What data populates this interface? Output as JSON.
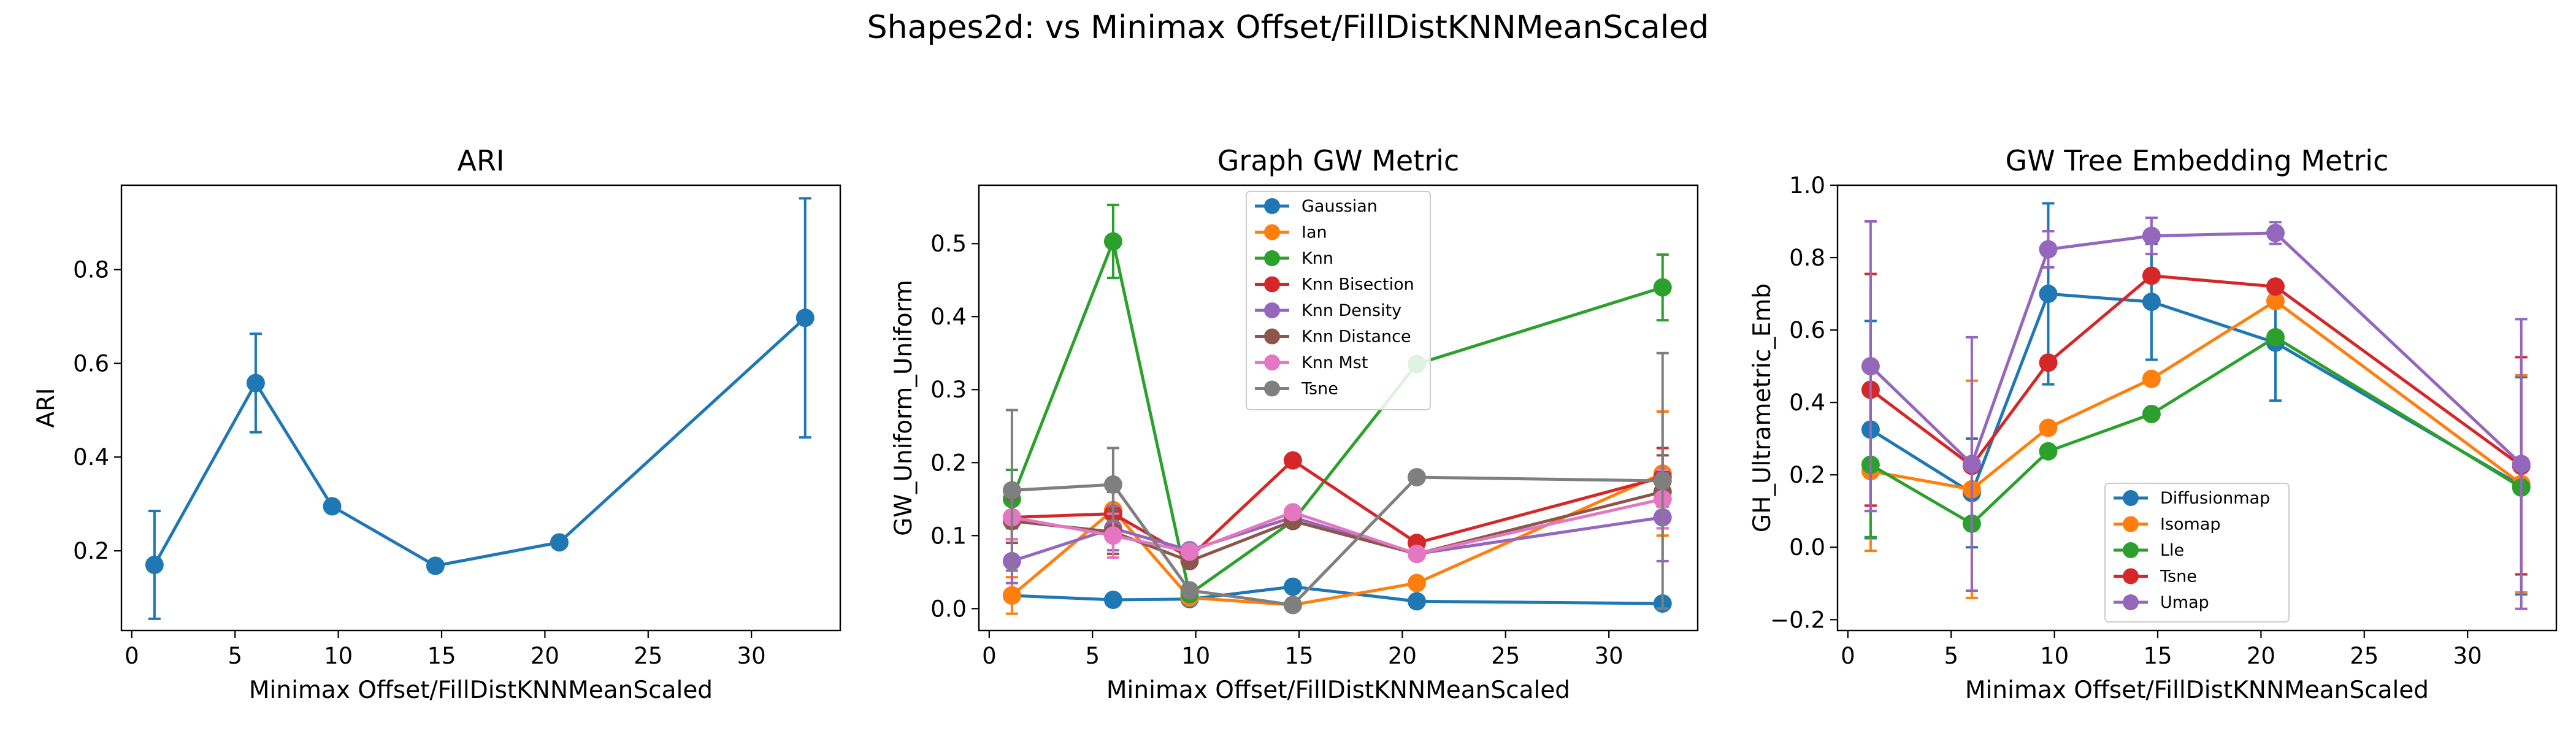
{
  "figure": {
    "suptitle": "Shapes2d: vs Minimax Offset/FillDistKNNMeanScaled"
  },
  "chart_data": [
    {
      "type": "line",
      "title": "ARI",
      "xlabel": "Minimax Offset/FillDistKNNMeanScaled",
      "ylabel": "ARI",
      "xlim": [
        -0.5,
        34.3
      ],
      "ylim": [
        0.03,
        0.98
      ],
      "xticks": [
        0,
        5,
        10,
        15,
        20,
        25,
        30
      ],
      "yticks": [
        0.2,
        0.4,
        0.6,
        0.8
      ],
      "ytick_labels": [
        "0.2",
        "0.4",
        "0.6",
        "0.8"
      ],
      "legend": null,
      "grid": false,
      "series": [
        {
          "color": "#1f77b4",
          "x": [
            1.1,
            6.0,
            9.7,
            14.7,
            20.7,
            32.6
          ],
          "y": [
            0.17,
            0.558,
            0.295,
            0.168,
            0.218,
            0.697
          ],
          "err": [
            0.115,
            0.105,
            0.0,
            0.0,
            0.0,
            0.255
          ]
        }
      ]
    },
    {
      "type": "line",
      "title": "Graph GW Metric",
      "xlabel": "Minimax Offset/FillDistKNNMeanScaled",
      "ylabel": "GW_Uniform_Uniform",
      "xlim": [
        -0.5,
        34.3
      ],
      "ylim": [
        -0.03,
        0.58
      ],
      "xticks": [
        0,
        5,
        10,
        15,
        20,
        25,
        30
      ],
      "yticks": [
        0.0,
        0.1,
        0.2,
        0.3,
        0.4,
        0.5
      ],
      "ytick_labels": [
        "0.0",
        "0.1",
        "0.2",
        "0.3",
        "0.4",
        "0.5"
      ],
      "legend": "upper-center",
      "grid": false,
      "series": [
        {
          "name": "Gaussian",
          "color": "#1f77b4",
          "x": [
            1.1,
            6.0,
            9.7,
            14.7,
            20.7,
            32.6
          ],
          "y": [
            0.018,
            0.012,
            0.013,
            0.03,
            0.01,
            0.007
          ],
          "err": [
            0.008,
            0.0,
            0.0,
            0.0,
            0.0,
            0.0
          ]
        },
        {
          "name": "Ian",
          "color": "#ff7f0e",
          "x": [
            1.1,
            6.0,
            9.7,
            14.7,
            20.7,
            32.6
          ],
          "y": [
            0.018,
            0.135,
            0.015,
            0.005,
            0.035,
            0.185
          ],
          "err": [
            0.025,
            0.0,
            0.0,
            0.0,
            0.0,
            0.085
          ]
        },
        {
          "name": "Knn",
          "color": "#2ca02c",
          "x": [
            1.1,
            6.0,
            9.7,
            14.7,
            20.7,
            32.6
          ],
          "y": [
            0.15,
            0.503,
            0.02,
            0.12,
            0.335,
            0.44
          ],
          "err": [
            0.04,
            0.05,
            0.0,
            0.0,
            0.0,
            0.045
          ]
        },
        {
          "name": "Knn Bisection",
          "color": "#d62728",
          "x": [
            1.1,
            6.0,
            9.7,
            14.7,
            20.7,
            32.6
          ],
          "y": [
            0.125,
            0.13,
            0.07,
            0.203,
            0.09,
            0.18
          ],
          "err": [
            0.03,
            0.03,
            0.0,
            0.0,
            0.0,
            0.04
          ]
        },
        {
          "name": "Knn Density",
          "color": "#9467bd",
          "x": [
            1.1,
            6.0,
            9.7,
            14.7,
            20.7,
            32.6
          ],
          "y": [
            0.065,
            0.11,
            0.08,
            0.125,
            0.075,
            0.125
          ],
          "err": [
            0.03,
            0.03,
            0.0,
            0.0,
            0.0,
            0.06
          ]
        },
        {
          "name": "Knn Distance",
          "color": "#8c564b",
          "x": [
            1.1,
            6.0,
            9.7,
            14.7,
            20.7,
            32.6
          ],
          "y": [
            0.12,
            0.105,
            0.065,
            0.12,
            0.075,
            0.16
          ],
          "err": [
            0.03,
            0.03,
            0.0,
            0.0,
            0.0,
            0.05
          ]
        },
        {
          "name": "Knn Mst",
          "color": "#e377c2",
          "x": [
            1.1,
            6.0,
            9.7,
            14.7,
            20.7,
            32.6
          ],
          "y": [
            0.125,
            0.1,
            0.078,
            0.132,
            0.075,
            0.15
          ],
          "err": [
            0.03,
            0.03,
            0.0,
            0.0,
            0.0,
            0.04
          ]
        },
        {
          "name": "Tsne",
          "color": "#7f7f7f",
          "x": [
            1.1,
            6.0,
            9.7,
            14.7,
            20.7,
            32.6
          ],
          "y": [
            0.162,
            0.17,
            0.025,
            0.005,
            0.18,
            0.175
          ],
          "err": [
            0.11,
            0.05,
            0.0,
            0.0,
            0.0,
            0.175
          ]
        }
      ]
    },
    {
      "type": "line",
      "title": "GW Tree Embedding Metric",
      "xlabel": "Minimax Offset/FillDistKNNMeanScaled",
      "ylabel": "GH_Ultrametric_Emb",
      "xlim": [
        -0.5,
        34.3
      ],
      "ylim": [
        -0.23,
        1.0
      ],
      "xticks": [
        0,
        5,
        10,
        15,
        20,
        25,
        30
      ],
      "yticks": [
        -0.2,
        0.0,
        0.2,
        0.4,
        0.6,
        0.8,
        1.0
      ],
      "ytick_labels": [
        "−0.2",
        "0.0",
        "0.2",
        "0.4",
        "0.6",
        "0.8",
        "1.0"
      ],
      "legend": "lower-center",
      "grid": false,
      "series": [
        {
          "name": "Diffusionmap",
          "color": "#1f77b4",
          "x": [
            1.1,
            6.0,
            9.7,
            14.7,
            20.7,
            32.6
          ],
          "y": [
            0.325,
            0.15,
            0.7,
            0.678,
            0.565,
            0.17
          ],
          "err": [
            0.3,
            0.15,
            0.25,
            0.16,
            0.16,
            0.3
          ]
        },
        {
          "name": "Isomap",
          "color": "#ff7f0e",
          "x": [
            1.1,
            6.0,
            9.7,
            14.7,
            20.7,
            32.6
          ],
          "y": [
            0.21,
            0.16,
            0.33,
            0.465,
            0.68,
            0.175
          ],
          "err": [
            0.22,
            0.3,
            0.0,
            0.0,
            0.0,
            0.3
          ]
        },
        {
          "name": "Lle",
          "color": "#2ca02c",
          "x": [
            1.1,
            6.0,
            9.7,
            14.7,
            20.7,
            32.6
          ],
          "y": [
            0.228,
            0.065,
            0.265,
            0.368,
            0.58,
            0.165
          ],
          "err": [
            0.2,
            0.0,
            0.0,
            0.0,
            0.0,
            0.0
          ]
        },
        {
          "name": "Tsne",
          "color": "#d62728",
          "x": [
            1.1,
            6.0,
            9.7,
            14.7,
            20.7,
            32.6
          ],
          "y": [
            0.435,
            0.225,
            0.51,
            0.75,
            0.72,
            0.225
          ],
          "err": [
            0.32,
            0.0,
            0.0,
            0.0,
            0.0,
            0.3
          ]
        },
        {
          "name": "Umap",
          "color": "#9467bd",
          "x": [
            1.1,
            6.0,
            9.7,
            14.7,
            20.7,
            32.6
          ],
          "y": [
            0.5,
            0.23,
            0.823,
            0.86,
            0.868,
            0.23
          ],
          "err": [
            0.4,
            0.35,
            0.05,
            0.05,
            0.03,
            0.4
          ]
        }
      ]
    }
  ]
}
